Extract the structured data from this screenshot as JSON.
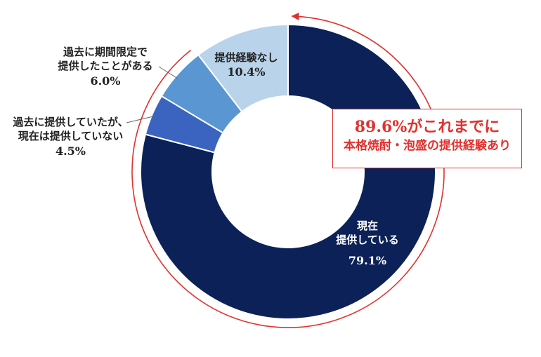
{
  "chart_data": {
    "type": "pie",
    "categories": [
      "現在提供している",
      "過去に提供していたが、現在は提供していない",
      "過去に期間限定で提供したことがある",
      "提供経験なし"
    ],
    "values": [
      79.1,
      4.5,
      6.0,
      10.4
    ],
    "colors": [
      "#0b2157",
      "#3a64c0",
      "#5a96d2",
      "#b9d3ea"
    ],
    "donut": true
  },
  "labels": {
    "current_line1": "現在",
    "current_line2": "提供している",
    "current_value": "79.1%",
    "past_line1": "過去に提供していたが、",
    "past_line2": "現在は提供していない",
    "past_value": "4.5%",
    "limited_line1": "過去に期間限定で",
    "limited_line2": "提供したことがある",
    "limited_value": "6.0%",
    "none_line1": "提供経験なし",
    "none_value": "10.4%"
  },
  "callout": {
    "line1": "89.6%がこれまでに",
    "line2": "本格焼酎・泡盛の提供経験あり",
    "color": "#e0312e"
  }
}
